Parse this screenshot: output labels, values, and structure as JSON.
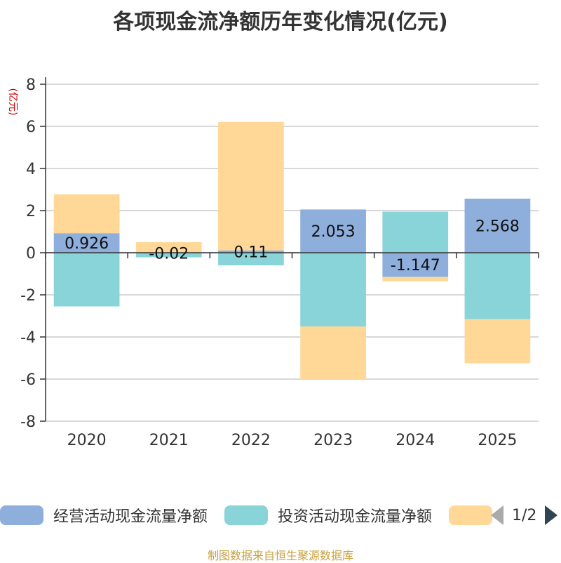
{
  "chart_data": {
    "type": "bar",
    "stacked": true,
    "title": "各项现金流净额历年变化情况(亿元)",
    "ylabel": "(亿元)",
    "xlabel": "",
    "categories": [
      "2020",
      "2021",
      "2022",
      "2023",
      "2024",
      "2025"
    ],
    "ylim": [
      -8,
      8
    ],
    "yticks": [
      8,
      6,
      4,
      2,
      0,
      -2,
      -4,
      -6,
      -8
    ],
    "grid": true,
    "legend_position": "bottom",
    "series": [
      {
        "name": "经营活动现金流量净额",
        "color": "#8eaedc",
        "values": [
          0.926,
          -0.02,
          0.11,
          2.053,
          -1.147,
          2.568
        ],
        "show_labels": true
      },
      {
        "name": "投资活动现金流量净额",
        "color": "#88d4d8",
        "values": [
          -2.55,
          -0.2,
          -0.6,
          -3.5,
          1.95,
          -3.15
        ],
        "show_labels": false
      },
      {
        "name": "",
        "color": "#ffd898",
        "values": [
          1.85,
          0.5,
          6.1,
          -2.5,
          -0.2,
          -2.1
        ],
        "show_labels": false
      }
    ]
  },
  "legend": {
    "page": "1/2"
  },
  "source": "制图数据来自恒生聚源数据库"
}
